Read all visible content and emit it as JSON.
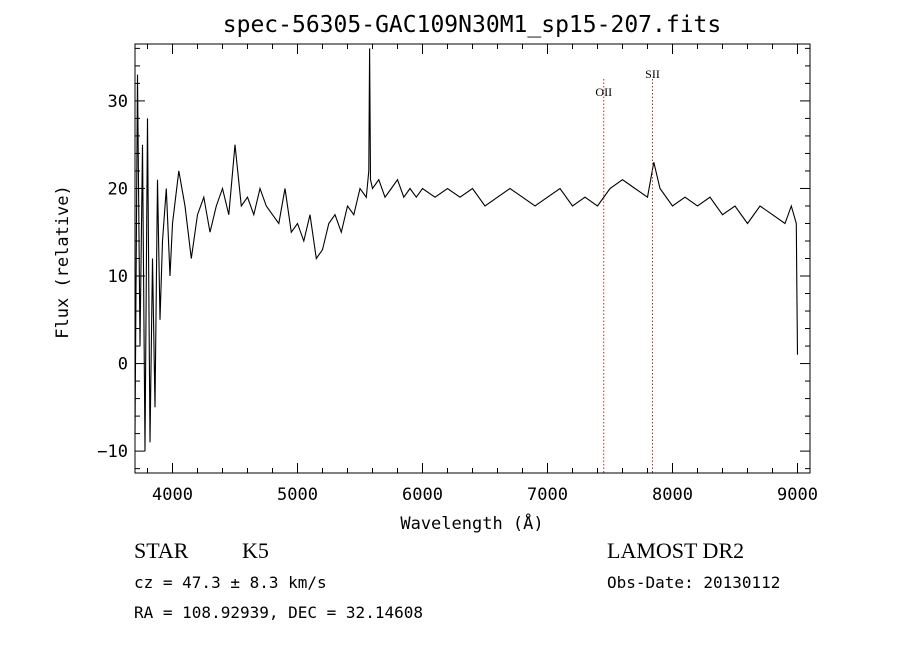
{
  "chart_data": {
    "type": "line",
    "title": "spec-56305-GAC109N30M1_sp15-207.fits",
    "xlabel": "Wavelength (Å)",
    "ylabel": "Flux (relative)",
    "xlim": [
      3700,
      9100
    ],
    "ylim": [
      -12.5,
      36.5
    ],
    "xticks": [
      4000,
      5000,
      6000,
      7000,
      8000,
      9000
    ],
    "yticks": [
      -10,
      0,
      10,
      20,
      30
    ],
    "grid": false,
    "line_color": "#000000",
    "series": [
      {
        "x": [
          3700,
          3720,
          3740,
          3760,
          3780,
          3800,
          3820,
          3840,
          3860,
          3880,
          3900,
          3920,
          3950,
          3980,
          4000,
          4050,
          4100,
          4150,
          4200,
          4250,
          4300,
          4350,
          4400,
          4450,
          4500,
          4550,
          4600,
          4650,
          4700,
          4750,
          4800,
          4850,
          4900,
          4950,
          5000,
          5050,
          5100,
          5150,
          5200,
          5250,
          5300,
          5350,
          5400,
          5450,
          5500,
          5550,
          5570,
          5577,
          5584,
          5600,
          5650,
          5700,
          5750,
          5800,
          5850,
          5900,
          5950,
          6000,
          6100,
          6200,
          6300,
          6400,
          6500,
          6600,
          6700,
          6800,
          6900,
          7000,
          7100,
          7200,
          7300,
          7400,
          7500,
          7600,
          7700,
          7800,
          7850,
          7900,
          8000,
          8100,
          8200,
          8300,
          8400,
          8500,
          8600,
          8700,
          8800,
          8900,
          8950,
          8990,
          8995,
          9000
        ],
        "y": [
          -8,
          33,
          2,
          25,
          -10,
          28,
          -9,
          12,
          -5,
          21,
          5,
          14,
          20,
          10,
          16,
          22,
          18,
          12,
          17,
          19,
          15,
          18,
          20,
          17,
          25,
          18,
          19,
          17,
          20,
          18,
          17,
          16,
          20,
          15,
          16,
          14,
          17,
          12,
          13,
          16,
          17,
          15,
          18,
          17,
          20,
          19,
          22,
          36,
          21,
          20,
          21,
          19,
          20,
          21,
          19,
          20,
          19,
          20,
          19,
          20,
          19,
          20,
          18,
          19,
          20,
          19,
          18,
          19,
          20,
          18,
          19,
          18,
          20,
          21,
          20,
          19,
          23,
          20,
          18,
          19,
          18,
          19,
          17,
          18,
          16,
          18,
          17,
          16,
          18,
          16,
          8,
          1
        ]
      }
    ],
    "annotations": [
      {
        "label": "OII",
        "x": 7450
      },
      {
        "label": "SII",
        "x": 7840
      }
    ],
    "annotation_color": "#b03030"
  },
  "info": {
    "object_type": "STAR",
    "subclass": "K5",
    "survey": "LAMOST DR2",
    "velocity": "cz = 47.3 ± 8.3 km/s",
    "obs_date": "Obs-Date: 20130112",
    "coords": "RA = 108.92939, DEC =  32.14608"
  }
}
